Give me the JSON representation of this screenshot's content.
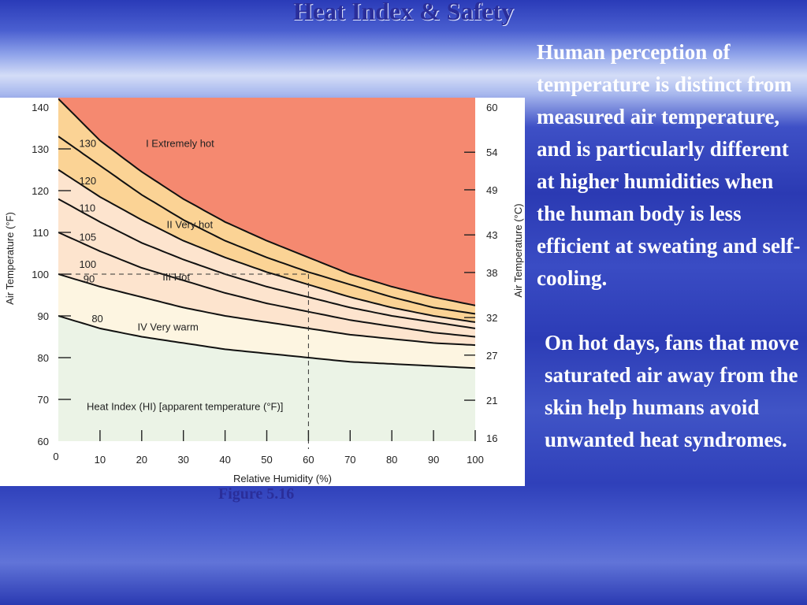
{
  "slide": {
    "title": "Heat Index & Safety",
    "figure_caption": "Figure 5.16",
    "paragraphs": [
      "Human perception of temperature is distinct from measured air temperature, and is particularly different at higher humidities when the human body is less efficient at sweating and self-cooling.",
      "On hot days, fans that move saturated air away from the skin help humans avoid unwanted heat syndromes."
    ]
  },
  "chart_data": {
    "type": "line",
    "xlabel": "Relative Humidity (%)",
    "ylabel_left": "Air Temperature (°F)",
    "ylabel_right": "Air Temperature (°C)",
    "annotation": "Heat Index (HI) [apparent temperature (°F)]",
    "xlim": [
      0,
      100
    ],
    "ylim": [
      60,
      140
    ],
    "x_ticks": [
      10,
      20,
      30,
      40,
      50,
      60,
      70,
      80,
      90,
      100
    ],
    "x_origin_label": "0",
    "y_left_ticks": [
      60,
      70,
      80,
      90,
      100,
      110,
      120,
      130,
      140
    ],
    "y_right_ticks": [
      {
        "label": "60",
        "f": 140
      },
      {
        "label": "54",
        "f": 129.2
      },
      {
        "label": "49",
        "f": 120.2
      },
      {
        "label": "43",
        "f": 109.4
      },
      {
        "label": "38",
        "f": 100.4
      },
      {
        "label": "32",
        "f": 89.6
      },
      {
        "label": "27",
        "f": 80.6
      },
      {
        "label": "21",
        "f": 69.8
      },
      {
        "label": "16",
        "f": 60.8
      }
    ],
    "reference_point": {
      "x": 60,
      "y": 100
    },
    "zones": [
      {
        "name": "I  Extremely hot",
        "color": "#f58970",
        "label_at": {
          "x": 21,
          "y": 130.5
        }
      },
      {
        "name": "II Very hot",
        "color": "#fbd395",
        "label_at": {
          "x": 26,
          "y": 111
        }
      },
      {
        "name": "III Hot",
        "color": "#fde4ce",
        "label_at": {
          "x": 25,
          "y": 98.5
        }
      },
      {
        "name": "IV Very warm",
        "color": "#fdf5e1",
        "label_at": {
          "x": 19,
          "y": 86.5
        }
      },
      {
        "name": "",
        "color": "#ebf3e6"
      }
    ],
    "series": [
      {
        "name": "130",
        "label_at": {
          "x": 5,
          "y": 130.5
        },
        "points": [
          [
            2,
            140
          ],
          [
            10,
            132
          ],
          [
            20,
            124.5
          ],
          [
            30,
            118
          ],
          [
            40,
            112.5
          ],
          [
            50,
            108
          ],
          [
            60,
            104
          ],
          [
            70,
            100
          ],
          [
            80,
            97
          ],
          [
            90,
            94.5
          ],
          [
            100,
            92.5
          ]
        ]
      },
      {
        "name": "120",
        "label_at": {
          "x": 5,
          "y": 121.5
        },
        "points": [
          [
            0,
            133
          ],
          [
            10,
            126
          ],
          [
            20,
            119
          ],
          [
            30,
            113
          ],
          [
            40,
            108
          ],
          [
            50,
            104
          ],
          [
            60,
            100.5
          ],
          [
            70,
            97.5
          ],
          [
            80,
            94.5
          ],
          [
            90,
            92
          ],
          [
            100,
            90.5
          ]
        ]
      },
      {
        "name": "110",
        "label_at": {
          "x": 5,
          "y": 115
        },
        "points": [
          [
            0,
            125
          ],
          [
            10,
            118.5
          ],
          [
            20,
            113
          ],
          [
            30,
            108
          ],
          [
            40,
            104
          ],
          [
            50,
            100.5
          ],
          [
            60,
            97.5
          ],
          [
            70,
            94.5
          ],
          [
            80,
            92
          ],
          [
            90,
            90
          ],
          [
            100,
            88.5
          ]
        ]
      },
      {
        "name": "105",
        "label_at": {
          "x": 5,
          "y": 108
        },
        "points": [
          [
            0,
            118
          ],
          [
            10,
            112.5
          ],
          [
            20,
            107.5
          ],
          [
            30,
            103.5
          ],
          [
            40,
            100
          ],
          [
            50,
            97
          ],
          [
            60,
            94.5
          ],
          [
            70,
            92
          ],
          [
            80,
            90
          ],
          [
            90,
            88.5
          ],
          [
            100,
            87
          ]
        ]
      },
      {
        "name": "100",
        "label_at": {
          "x": 5,
          "y": 101.5
        },
        "points": [
          [
            0,
            110
          ],
          [
            10,
            105.5
          ],
          [
            20,
            101.5
          ],
          [
            30,
            98.5
          ],
          [
            40,
            95.5
          ],
          [
            50,
            93
          ],
          [
            60,
            91
          ],
          [
            70,
            89
          ],
          [
            80,
            87.5
          ],
          [
            90,
            86
          ],
          [
            100,
            85
          ]
        ]
      },
      {
        "name": "90",
        "label_at": {
          "x": 6,
          "y": 98
        },
        "points": [
          [
            0,
            100
          ],
          [
            10,
            97
          ],
          [
            20,
            94.5
          ],
          [
            30,
            92
          ],
          [
            40,
            90
          ],
          [
            50,
            88.5
          ],
          [
            60,
            87
          ],
          [
            70,
            85.5
          ],
          [
            80,
            84.5
          ],
          [
            90,
            83.5
          ],
          [
            100,
            83
          ]
        ]
      },
      {
        "name": "80",
        "label_at": {
          "x": 8,
          "y": 88.5
        },
        "points": [
          [
            0,
            90
          ],
          [
            10,
            87
          ],
          [
            20,
            85
          ],
          [
            30,
            83.5
          ],
          [
            40,
            82
          ],
          [
            50,
            81
          ],
          [
            60,
            80
          ],
          [
            70,
            79
          ],
          [
            80,
            78.5
          ],
          [
            90,
            78
          ],
          [
            100,
            77.5
          ]
        ]
      }
    ]
  }
}
